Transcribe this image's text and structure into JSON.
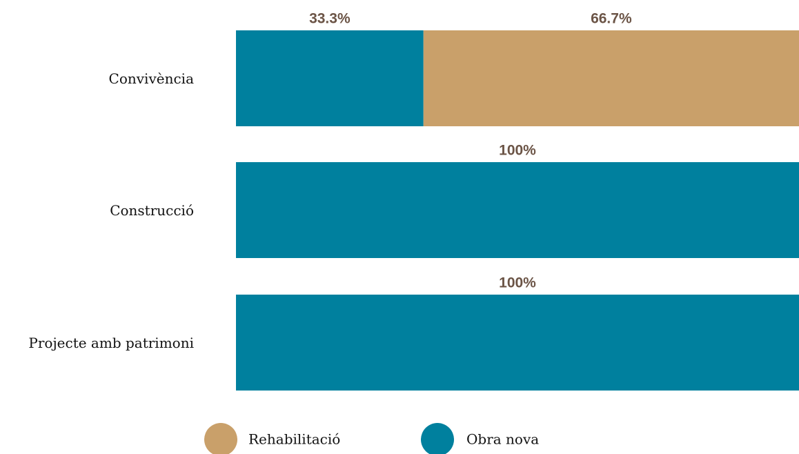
{
  "chart_data": {
    "type": "stacked-bar-horizontal",
    "categories": [
      "Convivència",
      "Construcció",
      "Projecte amb patrimoni"
    ],
    "series": [
      {
        "name": "Obra nova",
        "color": "#00809e",
        "values": [
          33.3,
          100,
          100
        ],
        "value_labels": [
          "33.3%",
          "100%",
          "100%"
        ]
      },
      {
        "name": "Rehabilitació",
        "color": "#c9a06a",
        "values": [
          66.7,
          0,
          0
        ],
        "value_labels": [
          "66.7%",
          null,
          null
        ]
      }
    ],
    "xlim": [
      0,
      100
    ],
    "legend": "bottom"
  }
}
